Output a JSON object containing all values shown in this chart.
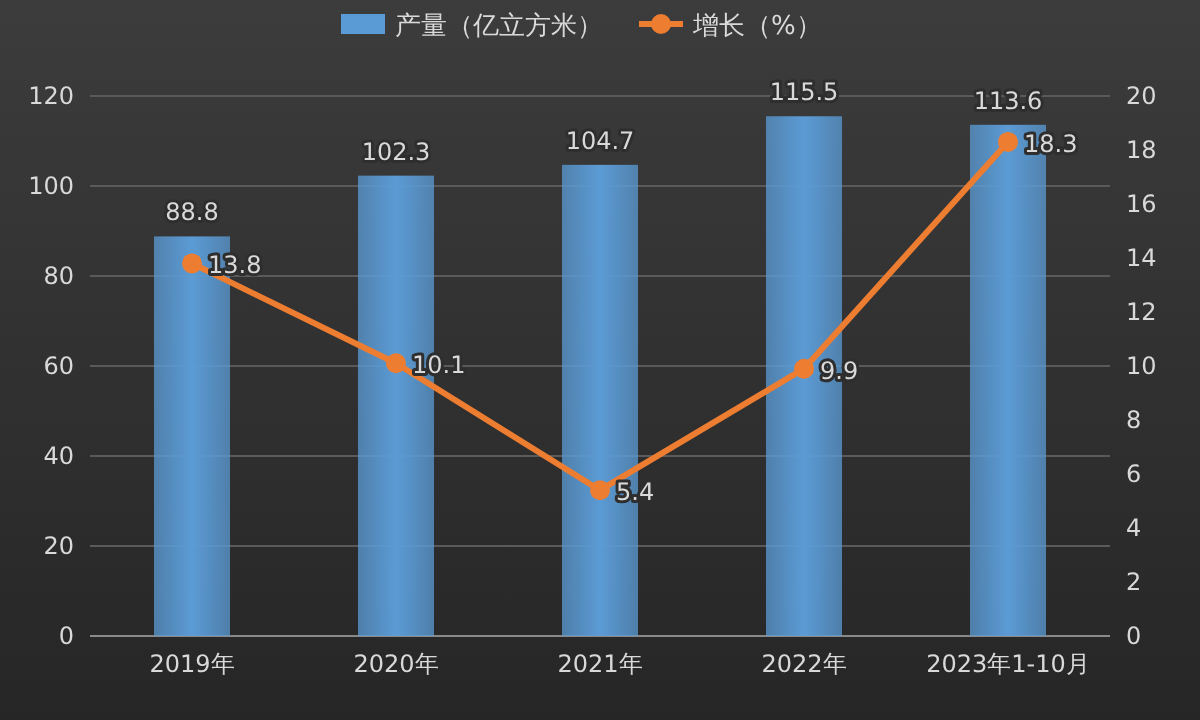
{
  "chart_data": {
    "type": "bar",
    "categories": [
      "2019年",
      "2020年",
      "2021年",
      "2022年",
      "2023年1-10月"
    ],
    "series": [
      {
        "name": "产量（亿立方米）",
        "color": "#5b9bd5",
        "values": [
          88.8,
          102.3,
          104.7,
          115.5,
          113.6
        ]
      },
      {
        "name": "增长（%）",
        "type": "line",
        "axis": "y2",
        "color": "#ed7d31",
        "values": [
          13.8,
          10.1,
          5.4,
          9.9,
          18.3
        ]
      }
    ],
    "ylim": [
      0,
      120
    ],
    "yticks": [
      0,
      20,
      40,
      60,
      80,
      100,
      120
    ],
    "y2lim": [
      0,
      20
    ],
    "y2ticks": [
      0,
      2,
      4,
      6,
      8,
      10,
      12,
      14,
      16,
      18,
      20
    ],
    "grid": "y",
    "legend": "top",
    "marker": "circle",
    "line_style": "solid",
    "data_labels": true
  }
}
